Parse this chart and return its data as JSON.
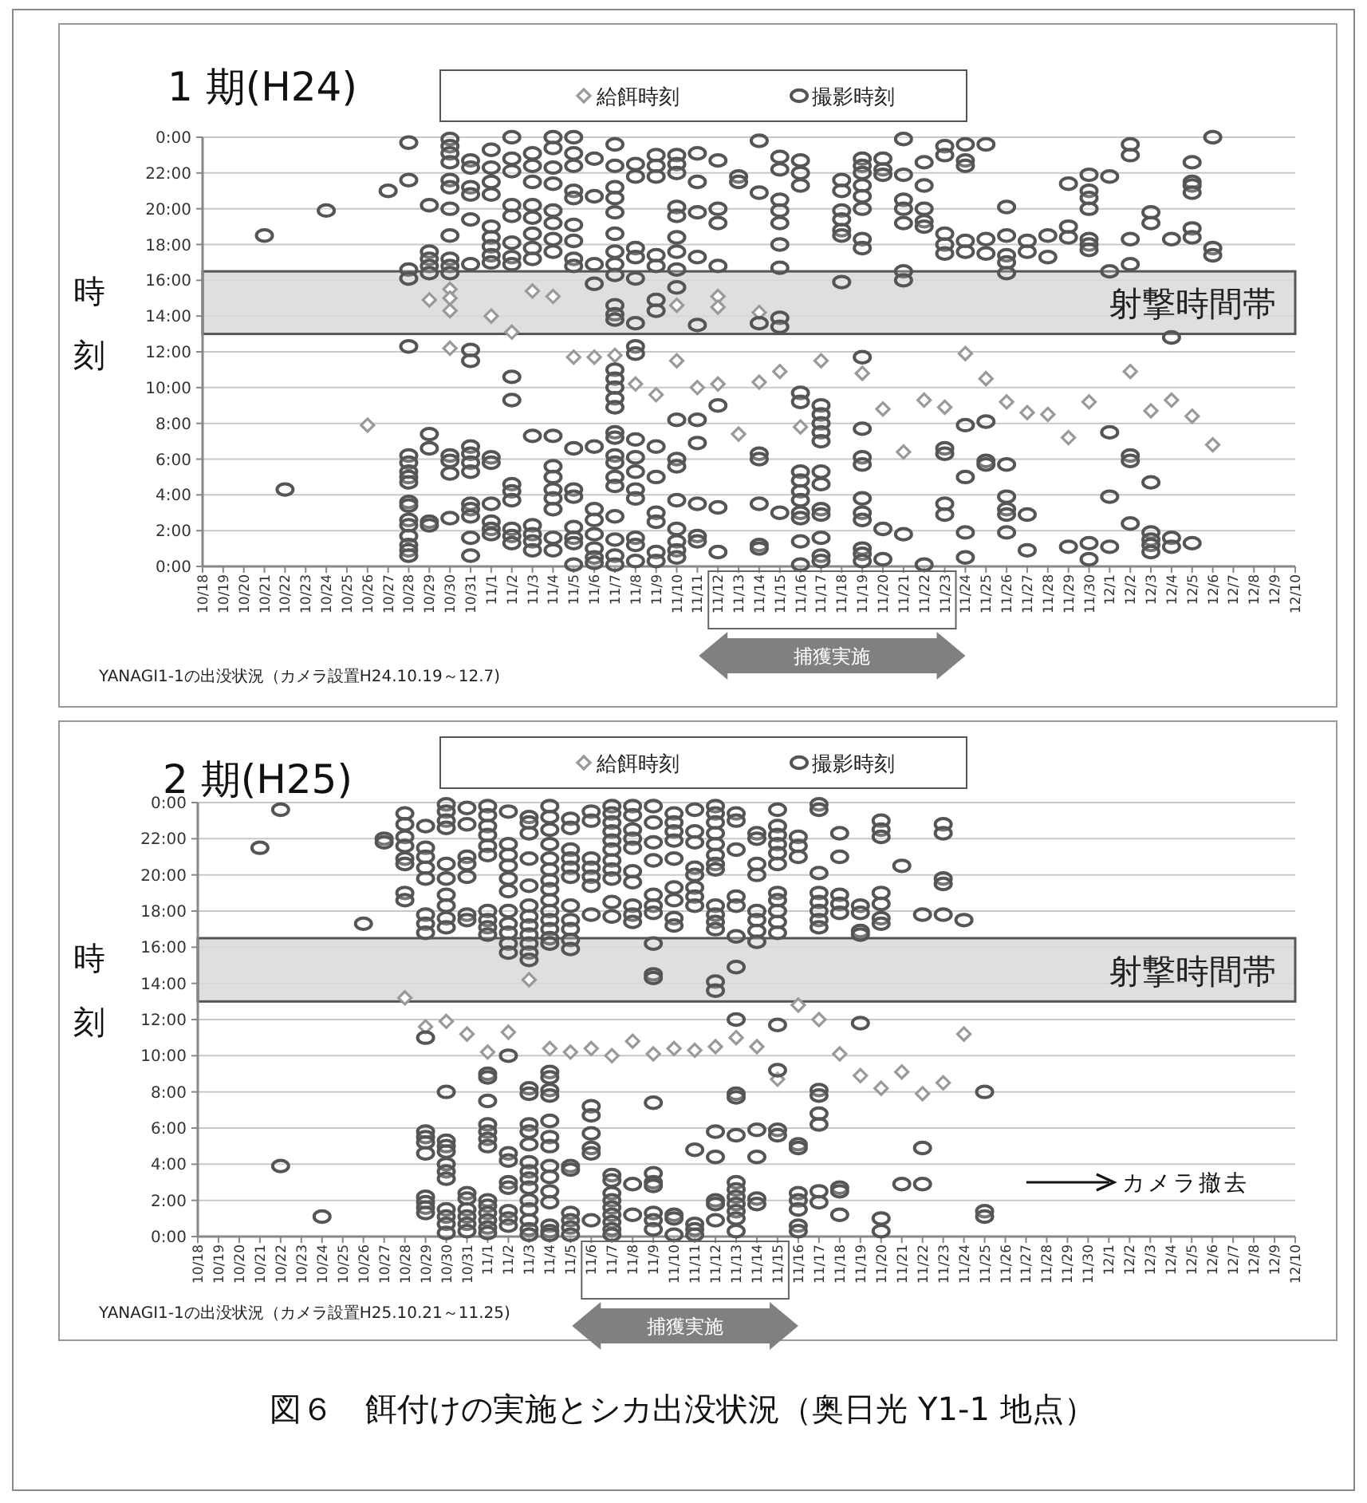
{
  "chart_data": [
    {
      "type": "scatter",
      "title": "1 期(H24)",
      "ylabel": "時刻",
      "legend": "top",
      "grid": "y",
      "categories": [
        "10/18",
        "10/19",
        "10/20",
        "10/21",
        "10/22",
        "10/23",
        "10/24",
        "10/25",
        "10/26",
        "10/27",
        "10/28",
        "10/29",
        "10/30",
        "10/31",
        "11/1",
        "11/2",
        "11/3",
        "11/4",
        "11/5",
        "11/6",
        "11/7",
        "11/8",
        "11/9",
        "11/10",
        "11/11",
        "11/12",
        "11/13",
        "11/14",
        "11/15",
        "11/16",
        "11/17",
        "11/18",
        "11/19",
        "11/20",
        "11/21",
        "11/22",
        "11/23",
        "11/24",
        "11/25",
        "11/26",
        "11/27",
        "11/28",
        "11/29",
        "11/30",
        "12/1",
        "12/2",
        "12/3",
        "12/4",
        "12/5",
        "12/6",
        "12/7",
        "12/8",
        "12/9",
        "12/10"
      ],
      "ylim": [
        0,
        24
      ],
      "yticks": [
        {
          "value": 0,
          "label": "0:00"
        },
        {
          "value": 2,
          "label": "2:00"
        },
        {
          "value": 4,
          "label": "4:00"
        },
        {
          "value": 6,
          "label": "6:00"
        },
        {
          "value": 8,
          "label": "8:00"
        },
        {
          "value": 10,
          "label": "10:00"
        },
        {
          "value": 12,
          "label": "12:00"
        },
        {
          "value": 14,
          "label": "14:00"
        },
        {
          "value": 16,
          "label": "16:00"
        },
        {
          "value": 18,
          "label": "18:00"
        },
        {
          "value": 20,
          "label": "20:00"
        },
        {
          "value": 22,
          "label": "22:00"
        },
        {
          "value": 24,
          "label": "0:00"
        }
      ],
      "bands": [
        {
          "axis": "y",
          "from": 13,
          "to": 16.5,
          "label": "射撃時間帯",
          "color": "#d9d9d9"
        }
      ],
      "annotations": [
        "YANAGI1-1の出没状況（カメラ設置H24.10.19～12.7)",
        "捕獲実施"
      ],
      "series": [
        {
          "name": "給餌時刻",
          "color": "#999999",
          "marker": "diamond",
          "x": [
            "10/26",
            "10/29",
            "10/30",
            "10/30",
            "10/30",
            "10/30",
            "11/1",
            "11/2",
            "11/3",
            "11/4",
            "11/5",
            "11/6",
            "11/7",
            "11/8",
            "11/9",
            "11/10",
            "11/10",
            "11/11",
            "11/12",
            "11/12",
            "11/12",
            "11/13",
            "11/14",
            "11/14",
            "11/15",
            "11/16",
            "11/17",
            "11/19",
            "11/20",
            "11/21",
            "11/22",
            "11/23",
            "11/24",
            "11/25",
            "11/26",
            "11/27",
            "11/28",
            "11/29",
            "11/30",
            "12/2",
            "12/3",
            "12/4",
            "12/5",
            "12/6"
          ],
          "values": [
            7.9,
            14.9,
            15.5,
            15.0,
            14.3,
            12.2,
            14.0,
            13.1,
            15.4,
            15.1,
            11.7,
            11.7,
            11.8,
            10.2,
            9.6,
            11.5,
            14.6,
            10.0,
            10.2,
            15.1,
            14.5,
            7.4,
            10.3,
            14.2,
            10.9,
            7.8,
            11.5,
            10.8,
            8.8,
            6.4,
            9.3,
            8.9,
            11.9,
            10.5,
            9.2,
            8.6,
            8.5,
            7.2,
            9.2,
            10.9,
            8.7,
            9.3,
            8.4,
            6.8
          ]
        },
        {
          "name": "撮影時刻",
          "color": "#555555",
          "marker": "circle",
          "x": [
            "10/21",
            "10/22",
            "10/24",
            "10/27",
            "10/28",
            "10/28",
            "10/28",
            "10/28",
            "10/28",
            "10/28",
            "10/28",
            "10/28",
            "10/28",
            "10/28",
            "10/28",
            "10/28",
            "10/28",
            "10/28",
            "10/28",
            "10/28",
            "10/28",
            "10/28",
            "10/29",
            "10/29",
            "10/29",
            "10/29",
            "10/29",
            "10/29",
            "10/29",
            "10/29",
            "10/29",
            "10/30",
            "10/30",
            "10/30",
            "10/30",
            "10/30",
            "10/30",
            "10/30",
            "10/30",
            "10/30",
            "10/30",
            "10/30",
            "10/30",
            "10/30",
            "10/30",
            "10/30",
            "10/31",
            "10/31",
            "10/31",
            "10/31",
            "10/31",
            "10/31",
            "10/31",
            "10/31",
            "10/31",
            "10/31",
            "10/31",
            "10/31",
            "10/31",
            "10/31",
            "10/31",
            "10/31",
            "10/31",
            "11/1",
            "11/1",
            "11/1",
            "11/1",
            "11/1",
            "11/1",
            "11/1",
            "11/1",
            "11/1",
            "11/1",
            "11/1",
            "11/1",
            "11/1",
            "11/1",
            "11/1",
            "11/2",
            "11/2",
            "11/2",
            "11/2",
            "11/2",
            "11/2",
            "11/2",
            "11/2",
            "11/2",
            "11/2",
            "11/2",
            "11/2",
            "11/2",
            "11/2",
            "11/2",
            "11/2",
            "11/3",
            "11/3",
            "11/3",
            "11/3",
            "11/3",
            "11/3",
            "11/3",
            "11/3",
            "11/3",
            "11/3",
            "11/3",
            "11/3",
            "11/3",
            "11/4",
            "11/4",
            "11/4",
            "11/4",
            "11/4",
            "11/4",
            "11/4",
            "11/4",
            "11/4",
            "11/4",
            "11/4",
            "11/4",
            "11/4",
            "11/4",
            "11/4",
            "11/4",
            "11/5",
            "11/5",
            "11/5",
            "11/5",
            "11/5",
            "11/5",
            "11/5",
            "11/5",
            "11/5",
            "11/5",
            "11/5",
            "11/5",
            "11/5",
            "11/5",
            "11/5",
            "11/5",
            "11/6",
            "11/6",
            "11/6",
            "11/6",
            "11/6",
            "11/6",
            "11/6",
            "11/6",
            "11/6",
            "11/6",
            "11/6",
            "11/7",
            "11/7",
            "11/7",
            "11/7",
            "11/7",
            "11/7",
            "11/7",
            "11/7",
            "11/7",
            "11/7",
            "11/7",
            "11/7",
            "11/7",
            "11/7",
            "11/7",
            "11/7",
            "11/7",
            "11/7",
            "11/7",
            "11/7",
            "11/7",
            "11/7",
            "11/7",
            "11/7",
            "11/7",
            "11/7",
            "11/7",
            "11/8",
            "11/8",
            "11/8",
            "11/8",
            "11/8",
            "11/8",
            "11/8",
            "11/8",
            "11/8",
            "11/8",
            "11/8",
            "11/8",
            "11/8",
            "11/8",
            "11/8",
            "11/8",
            "11/9",
            "11/9",
            "11/9",
            "11/9",
            "11/9",
            "11/9",
            "11/9",
            "11/9",
            "11/9",
            "11/9",
            "11/9",
            "11/9",
            "11/9",
            "11/10",
            "11/10",
            "11/10",
            "11/10",
            "11/10",
            "11/10",
            "11/10",
            "11/10",
            "11/10",
            "11/10",
            "11/10",
            "11/10",
            "11/10",
            "11/10",
            "11/10",
            "11/10",
            "11/10",
            "11/11",
            "11/11",
            "11/11",
            "11/11",
            "11/11",
            "11/11",
            "11/11",
            "11/11",
            "11/11",
            "11/11",
            "11/12",
            "11/12",
            "11/12",
            "11/12",
            "11/12",
            "11/12",
            "11/12",
            "11/13",
            "11/13",
            "11/14",
            "11/14",
            "11/14",
            "11/14",
            "11/14",
            "11/14",
            "11/14",
            "11/14",
            "11/15",
            "11/15",
            "11/15",
            "11/15",
            "11/15",
            "11/15",
            "11/15",
            "11/15",
            "11/15",
            "11/15",
            "11/16",
            "11/16",
            "11/16",
            "11/16",
            "11/16",
            "11/16",
            "11/16",
            "11/16",
            "11/16",
            "11/16",
            "11/16",
            "11/16",
            "11/16",
            "11/17",
            "11/17",
            "11/17",
            "11/17",
            "11/17",
            "11/17",
            "11/17",
            "11/17",
            "11/17",
            "11/17",
            "11/17",
            "11/17",
            "11/18",
            "11/18",
            "11/18",
            "11/18",
            "11/18",
            "11/18",
            "11/18",
            "11/19",
            "11/19",
            "11/19",
            "11/19",
            "11/19",
            "11/19",
            "11/19",
            "11/19",
            "11/19",
            "11/19",
            "11/19",
            "11/19",
            "11/19",
            "11/19",
            "11/19",
            "11/19",
            "11/19",
            "11/19",
            "11/20",
            "11/20",
            "11/20",
            "11/20",
            "11/20",
            "11/21",
            "11/21",
            "11/21",
            "11/21",
            "11/21",
            "11/21",
            "11/21",
            "11/21",
            "11/22",
            "11/22",
            "11/22",
            "11/22",
            "11/22",
            "11/22",
            "11/23",
            "11/23",
            "11/23",
            "11/23",
            "11/23",
            "11/23",
            "11/23",
            "11/23",
            "11/23",
            "11/24",
            "11/24",
            "11/24",
            "11/24",
            "11/24",
            "11/24",
            "11/24",
            "11/24",
            "11/24",
            "11/25",
            "11/25",
            "11/25",
            "11/25",
            "11/25",
            "11/25",
            "11/26",
            "11/26",
            "11/26",
            "11/26",
            "11/26",
            "11/26",
            "11/26",
            "11/26",
            "11/26",
            "11/26",
            "11/27",
            "11/27",
            "11/27",
            "11/27",
            "11/28",
            "11/28",
            "11/29",
            "11/29",
            "11/29",
            "11/29",
            "11/30",
            "11/30",
            "11/30",
            "11/30",
            "11/30",
            "11/30",
            "11/30",
            "11/30",
            "11/30",
            "12/1",
            "12/1",
            "12/1",
            "12/1",
            "12/1",
            "12/2",
            "12/2",
            "12/2",
            "12/2",
            "12/2",
            "12/2",
            "12/2",
            "12/3",
            "12/3",
            "12/3",
            "12/3",
            "12/3",
            "12/3",
            "12/3",
            "12/4",
            "12/4",
            "12/4",
            "12/4",
            "12/5",
            "12/5",
            "12/5",
            "12/5",
            "12/5",
            "12/5",
            "12/5",
            "12/6",
            "12/6",
            "12/6"
          ],
          "values": [
            18.5,
            4.3,
            19.9,
            21,
            23.7,
            21.6,
            16.6,
            16.1,
            12.3,
            6.2,
            5.8,
            5.3,
            5.0,
            4.7,
            3.6,
            3.4,
            2.6,
            2.3,
            1.7,
            1.2,
            0.9,
            0.6,
            20.2,
            17.6,
            17.2,
            16.8,
            16.4,
            7.4,
            6.6,
            2.5,
            2.3,
            23.9,
            23.5,
            23.1,
            22.6,
            21.6,
            21.2,
            20.0,
            18.5,
            17.2,
            16.8,
            16.4,
            6.2,
            5.9,
            5.2,
            2.7,
            22.7,
            22.3,
            21.2,
            20.8,
            19.4,
            16.9,
            12.1,
            11.5,
            6.7,
            6.3,
            5.8,
            5.3,
            3.5,
            3.2,
            2.8,
            1.6,
            0.6,
            23.3,
            22.3,
            21.5,
            20.8,
            19.0,
            18.4,
            17.9,
            17.4,
            17.0,
            6.1,
            5.8,
            3.5,
            2.5,
            2.1,
            1.8,
            24,
            22.8,
            22.1,
            20.2,
            19.6,
            18.1,
            17.3,
            16.9,
            10.6,
            9.3,
            4.6,
            4.2,
            3.7,
            2.1,
            1.7,
            1.3,
            23.1,
            22.4,
            21.5,
            20.2,
            19.5,
            18.6,
            17.8,
            17.2,
            7.3,
            2.3,
            1.8,
            1.4,
            0.9,
            24,
            23.4,
            22.3,
            21.4,
            19.9,
            19.2,
            18.3,
            17.6,
            7.3,
            5.6,
            5.0,
            4.3,
            3.8,
            3.2,
            1.6,
            0.9,
            24,
            23.1,
            22.4,
            21.0,
            20.6,
            19.1,
            18.2,
            17.2,
            16.8,
            6.6,
            4.3,
            3.9,
            2.2,
            1.6,
            1.3,
            0.1,
            22.8,
            20.7,
            16.9,
            15.8,
            6.7,
            3.2,
            2.6,
            1.8,
            1.0,
            0.5,
            0.2,
            23.6,
            22.4,
            21.2,
            20.6,
            19.8,
            18.6,
            17.6,
            16.9,
            16.3,
            14.6,
            14.1,
            13.8,
            11.0,
            10.5,
            10.0,
            9.4,
            8.9,
            7.5,
            7.2,
            6.2,
            5.8,
            5.0,
            4.5,
            2.8,
            1.5,
            0.6,
            0.1,
            22.5,
            21.8,
            17.8,
            17.3,
            16.1,
            13.6,
            12.3,
            11.9,
            7.1,
            6.1,
            5.3,
            4.3,
            3.8,
            1.6,
            1.2,
            0.3,
            23.0,
            22.4,
            21.8,
            17.4,
            16.8,
            14.9,
            14.3,
            6.7,
            5.0,
            3.0,
            2.5,
            0.8,
            0.3,
            23.0,
            22.5,
            22.0,
            20.1,
            19.6,
            18.4,
            17.6,
            16.6,
            15.6,
            8.2,
            6.0,
            5.6,
            3.7,
            2.1,
            1.4,
            0.9,
            0.5,
            23.1,
            21.5,
            19.8,
            17.3,
            13.5,
            8.2,
            6.9,
            3.5,
            1.7,
            1.4,
            22.7,
            20.0,
            19.2,
            16.8,
            9.0,
            3.3,
            0.8,
            21.8,
            21.5,
            23.8,
            20.9,
            13.6,
            6.3,
            6.0,
            3.5,
            1.2,
            1.0,
            22.9,
            22.2,
            20.5,
            19.9,
            19.2,
            18.0,
            16.7,
            13.9,
            13.4,
            3.0,
            22.7,
            22.0,
            21.3,
            9.7,
            9.2,
            5.3,
            4.8,
            4.2,
            3.7,
            3.0,
            2.7,
            1.4,
            0.1,
            9.0,
            8.5,
            8.0,
            7.5,
            7.0,
            5.3,
            4.6,
            3.2,
            2.9,
            1.6,
            0.6,
            0.3,
            21.6,
            21.0,
            19.9,
            19.4,
            18.8,
            18.5,
            15.9,
            22.8,
            22.4,
            22.0,
            21.3,
            20.7,
            20.0,
            18.3,
            17.8,
            11.7,
            7.7,
            6.1,
            5.7,
            3.8,
            3.0,
            2.6,
            1.0,
            0.7,
            0.3,
            22.8,
            22.2,
            21.9,
            2.1,
            0.4,
            23.9,
            21.9,
            20.5,
            20.0,
            19.2,
            16.5,
            16.0,
            1.8,
            22.6,
            21.3,
            20.0,
            19.3,
            19.0,
            0.1,
            23.5,
            23.0,
            18.6,
            18.0,
            17.5,
            6.6,
            6.3,
            3.5,
            2.9,
            23.6,
            22.7,
            22.4,
            18.2,
            17.6,
            7.9,
            5.0,
            1.9,
            0.5,
            23.6,
            18.3,
            17.5,
            8.1,
            5.9,
            5.7,
            20.1,
            18.5,
            17.4,
            17.0,
            16.4,
            5.7,
            3.9,
            3.2,
            2.9,
            1.9,
            18.2,
            17.6,
            2.9,
            0.9,
            18.5,
            17.3,
            21.4,
            19.0,
            18.4,
            1.1,
            21.9,
            21.0,
            20.6,
            20.0,
            18.3,
            18.0,
            17.7,
            1.3,
            0.4,
            21.8,
            16.5,
            7.5,
            3.9,
            1.1,
            23.6,
            23.0,
            18.3,
            16.9,
            6.2,
            5.9,
            2.4,
            19.8,
            19.2,
            4.7,
            1.9,
            1.5,
            1.2,
            0.8,
            18.3,
            12.8,
            1.6,
            1.1,
            22.6,
            21.5,
            21.3,
            20.9,
            18.9,
            18.4,
            1.3,
            24,
            17.8,
            17.4
          ]
        }
      ]
    },
    {
      "type": "scatter",
      "title": "2 期(H25)",
      "ylabel": "時刻",
      "legend": "top",
      "grid": "y",
      "categories": [
        "10/18",
        "10/19",
        "10/20",
        "10/21",
        "10/22",
        "10/23",
        "10/24",
        "10/25",
        "10/26",
        "10/27",
        "10/28",
        "10/29",
        "10/30",
        "10/31",
        "11/1",
        "11/2",
        "11/3",
        "11/4",
        "11/5",
        "11/6",
        "11/7",
        "11/8",
        "11/9",
        "11/10",
        "11/11",
        "11/12",
        "11/13",
        "11/14",
        "11/15",
        "11/16",
        "11/17",
        "11/18",
        "11/19",
        "11/20",
        "11/21",
        "11/22",
        "11/23",
        "11/24",
        "11/25",
        "11/26",
        "11/27",
        "11/28",
        "11/29",
        "11/30",
        "12/1",
        "12/2",
        "12/3",
        "12/4",
        "12/5",
        "12/6",
        "12/7",
        "12/8",
        "12/9",
        "12/10"
      ],
      "ylim": [
        0,
        24
      ],
      "yticks": [
        {
          "value": 0,
          "label": "0:00"
        },
        {
          "value": 2,
          "label": "2:00"
        },
        {
          "value": 4,
          "label": "4:00"
        },
        {
          "value": 6,
          "label": "6:00"
        },
        {
          "value": 8,
          "label": "8:00"
        },
        {
          "value": 10,
          "label": "10:00"
        },
        {
          "value": 12,
          "label": "12:00"
        },
        {
          "value": 14,
          "label": "14:00"
        },
        {
          "value": 16,
          "label": "16:00"
        },
        {
          "value": 18,
          "label": "18:00"
        },
        {
          "value": 20,
          "label": "20:00"
        },
        {
          "value": 22,
          "label": "22:00"
        },
        {
          "value": 24,
          "label": "0:00"
        }
      ],
      "bands": [
        {
          "axis": "y",
          "from": 13,
          "to": 16.5,
          "label": "射撃時間帯",
          "color": "#d9d9d9"
        }
      ],
      "annotations": [
        "YANAGI1-1の出没状況（カメラ設置H25.10.21～11.25)",
        "捕獲実施",
        "カメラ撤去",
        "図６　餌付けの実施とシカ出没状況（奥日光 Y1-1 地点）"
      ],
      "series": [
        {
          "name": "給餌時刻",
          "color": "#999999",
          "marker": "diamond",
          "x": [
            "10/28",
            "10/29",
            "10/30",
            "10/31",
            "11/1",
            "11/2",
            "11/3",
            "11/4",
            "11/5",
            "11/6",
            "11/7",
            "11/8",
            "11/9",
            "11/10",
            "11/11",
            "11/12",
            "11/13",
            "11/14",
            "11/15",
            "11/16",
            "11/17",
            "11/18",
            "11/19",
            "11/20",
            "11/21",
            "11/22",
            "11/23",
            "11/24"
          ],
          "values": [
            13.2,
            11.6,
            11.9,
            11.2,
            10.2,
            11.3,
            14.2,
            10.4,
            10.2,
            10.4,
            10.0,
            10.8,
            10.1,
            10.4,
            10.3,
            10.5,
            11.0,
            10.5,
            8.7,
            12.8,
            12.0,
            10.1,
            8.9,
            8.2,
            9.1,
            7.9,
            8.5,
            11.2
          ]
        },
        {
          "name": "撮影時刻",
          "color": "#555555",
          "marker": "circle",
          "x": [
            "10/21",
            "10/22",
            "10/22",
            "10/24",
            "10/26",
            "10/27",
            "10/27",
            "10/28",
            "10/28",
            "10/28",
            "10/28",
            "10/28",
            "10/28",
            "10/28",
            "10/28",
            "10/29",
            "10/29",
            "10/29",
            "10/29",
            "10/29",
            "10/29",
            "10/29",
            "10/29",
            "10/29",
            "10/29",
            "10/29",
            "10/29",
            "10/29",
            "10/29",
            "10/29",
            "10/29",
            "10/29",
            "10/30",
            "10/30",
            "10/30",
            "10/30",
            "10/30",
            "10/30",
            "10/30",
            "10/30",
            "10/30",
            "10/30",
            "10/30",
            "10/30",
            "10/30",
            "10/30",
            "10/30",
            "10/30",
            "10/30",
            "10/30",
            "10/30",
            "10/30",
            "10/30",
            "10/31",
            "10/31",
            "10/31",
            "10/31",
            "10/31",
            "10/31",
            "10/31",
            "10/31",
            "10/31",
            "10/31",
            "10/31",
            "10/31",
            "10/31",
            "11/1",
            "11/1",
            "11/1",
            "11/1",
            "11/1",
            "11/1",
            "11/1",
            "11/1",
            "11/1",
            "11/1",
            "11/1",
            "11/1",
            "11/1",
            "11/1",
            "11/1",
            "11/1",
            "11/1",
            "11/1",
            "11/1",
            "11/1",
            "11/1",
            "11/1",
            "11/1",
            "11/2",
            "11/2",
            "11/2",
            "11/2",
            "11/2",
            "11/2",
            "11/2",
            "11/2",
            "11/2",
            "11/2",
            "11/2",
            "11/2",
            "11/2",
            "11/2",
            "11/2",
            "11/2",
            "11/2",
            "11/2",
            "11/2",
            "11/3",
            "11/3",
            "11/3",
            "11/3",
            "11/3",
            "11/3",
            "11/3",
            "11/3",
            "11/3",
            "11/3",
            "11/3",
            "11/3",
            "11/3",
            "11/3",
            "11/3",
            "11/3",
            "11/3",
            "11/3",
            "11/3",
            "11/3",
            "11/3",
            "11/3",
            "11/3",
            "11/3",
            "11/3",
            "11/3",
            "11/4",
            "11/4",
            "11/4",
            "11/4",
            "11/4",
            "11/4",
            "11/4",
            "11/4",
            "11/4",
            "11/4",
            "11/4",
            "11/4",
            "11/4",
            "11/4",
            "11/4",
            "11/4",
            "11/4",
            "11/4",
            "11/4",
            "11/4",
            "11/4",
            "11/4",
            "11/4",
            "11/4",
            "11/4",
            "11/4",
            "11/4",
            "11/4",
            "11/5",
            "11/5",
            "11/5",
            "11/5",
            "11/5",
            "11/5",
            "11/5",
            "11/5",
            "11/5",
            "11/5",
            "11/5",
            "11/5",
            "11/5",
            "11/5",
            "11/5",
            "11/5",
            "11/5",
            "11/6",
            "11/6",
            "11/6",
            "11/6",
            "11/6",
            "11/6",
            "11/6",
            "11/6",
            "11/6",
            "11/6",
            "11/6",
            "11/6",
            "11/6",
            "11/7",
            "11/7",
            "11/7",
            "11/7",
            "11/7",
            "11/7",
            "11/7",
            "11/7",
            "11/7",
            "11/7",
            "11/7",
            "11/7",
            "11/7",
            "11/7",
            "11/7",
            "11/7",
            "11/7",
            "11/7",
            "11/7",
            "11/7",
            "11/8",
            "11/8",
            "11/8",
            "11/8",
            "11/8",
            "11/8",
            "11/8",
            "11/8",
            "11/8",
            "11/8",
            "11/8",
            "11/8",
            "11/9",
            "11/9",
            "11/9",
            "11/9",
            "11/9",
            "11/9",
            "11/9",
            "11/9",
            "11/9",
            "11/9",
            "11/9",
            "11/9",
            "11/9",
            "11/9",
            "11/9",
            "11/9",
            "11/9",
            "11/10",
            "11/10",
            "11/10",
            "11/10",
            "11/10",
            "11/10",
            "11/10",
            "11/10",
            "11/10",
            "11/10",
            "11/10",
            "11/10",
            "11/11",
            "11/11",
            "11/11",
            "11/11",
            "11/11",
            "11/11",
            "11/11",
            "11/11",
            "11/11",
            "11/11",
            "11/11",
            "11/11",
            "11/12",
            "11/12",
            "11/12",
            "11/12",
            "11/12",
            "11/12",
            "11/12",
            "11/12",
            "11/12",
            "11/12",
            "11/12",
            "11/12",
            "11/12",
            "11/12",
            "11/12",
            "11/12",
            "11/12",
            "11/12",
            "11/12",
            "11/13",
            "11/13",
            "11/13",
            "11/13",
            "11/13",
            "11/13",
            "11/13",
            "11/13",
            "11/13",
            "11/13",
            "11/13",
            "11/13",
            "11/13",
            "11/13",
            "11/13",
            "11/13",
            "11/13",
            "11/13",
            "11/14",
            "11/14",
            "11/14",
            "11/14",
            "11/14",
            "11/14",
            "11/14",
            "11/14",
            "11/14",
            "11/14",
            "11/14",
            "11/14",
            "11/15",
            "11/15",
            "11/15",
            "11/15",
            "11/15",
            "11/15",
            "11/15",
            "11/15",
            "11/15",
            "11/15",
            "11/15",
            "11/15",
            "11/15",
            "11/15",
            "11/15",
            "11/16",
            "11/16",
            "11/16",
            "11/16",
            "11/16",
            "11/16",
            "11/16",
            "11/16",
            "11/16",
            "11/16",
            "11/17",
            "11/17",
            "11/17",
            "11/17",
            "11/17",
            "11/17",
            "11/17",
            "11/17",
            "11/17",
            "11/17",
            "11/17",
            "11/17",
            "11/17",
            "11/17",
            "11/18",
            "11/18",
            "11/18",
            "11/18",
            "11/18",
            "11/18",
            "11/18",
            "11/18",
            "11/19",
            "11/19",
            "11/19",
            "11/19",
            "11/19",
            "11/20",
            "11/20",
            "11/20",
            "11/20",
            "11/20",
            "11/20",
            "11/20",
            "11/20",
            "11/20",
            "11/21",
            "11/21",
            "11/22",
            "11/22",
            "11/22",
            "11/23",
            "11/23",
            "11/23",
            "11/23",
            "11/23",
            "11/24",
            "11/25",
            "11/25",
            "11/25"
          ],
          "values": [
            21.5,
            23.6,
            3.9,
            1.1,
            17.3,
            22.0,
            21.8,
            23.4,
            22.8,
            22.1,
            21.6,
            20.9,
            20.6,
            19.0,
            18.6,
            22.7,
            21.5,
            21.0,
            20.4,
            19.8,
            17.8,
            17.3,
            16.8,
            11.0,
            5.8,
            5.5,
            5.2,
            4.6,
            2.2,
            1.9,
            1.6,
            1.3,
            23.9,
            23.5,
            23.0,
            22.6,
            20.6,
            19.8,
            18.9,
            18.3,
            17.6,
            17.1,
            8.0,
            5.3,
            5.0,
            4.7,
            4.0,
            3.6,
            3.2,
            1.5,
            1.1,
            0.7,
            0.2,
            23.7,
            22.8,
            21.0,
            20.6,
            19.9,
            17.8,
            17.5,
            2.4,
            2.1,
            1.5,
            1.1,
            0.7,
            0.3,
            23.8,
            23.3,
            22.7,
            22.2,
            21.6,
            21.1,
            18.0,
            17.5,
            17.1,
            16.7,
            9.0,
            8.8,
            7.5,
            6.2,
            5.8,
            5.4,
            5.0,
            2.0,
            1.7,
            1.3,
            0.9,
            0.5,
            0.2,
            23.5,
            21.7,
            21.1,
            20.5,
            19.8,
            19.1,
            18.0,
            17.3,
            16.8,
            16.2,
            15.7,
            10.0,
            4.6,
            4.2,
            3.0,
            2.7,
            1.4,
            1.0,
            0.6,
            23.2,
            22.9,
            22.3,
            20.9,
            19.4,
            18.3,
            17.7,
            17.2,
            16.7,
            16.2,
            15.7,
            15.3,
            8.2,
            7.9,
            6.2,
            5.8,
            5.1,
            4.1,
            3.6,
            3.2,
            2.7,
            2.0,
            1.5,
            0.9,
            0.4,
            0.1,
            23.8,
            23.2,
            22.5,
            21.7,
            20.9,
            20.3,
            19.7,
            19.2,
            18.6,
            18.0,
            17.5,
            17.0,
            16.5,
            16.2,
            9.1,
            8.8,
            8.1,
            7.8,
            6.4,
            5.5,
            5.0,
            3.9,
            3.3,
            2.5,
            1.9,
            0.6,
            0.3,
            0.1,
            23.1,
            22.6,
            21.4,
            20.9,
            20.4,
            19.9,
            18.3,
            17.5,
            17.0,
            16.4,
            15.9,
            3.9,
            3.7,
            1.3,
            0.9,
            0.5,
            0.1,
            23.5,
            23.0,
            20.9,
            20.4,
            19.9,
            19.4,
            17.8,
            7.2,
            6.7,
            5.7,
            4.9,
            4.6,
            0.9,
            23.8,
            23.4,
            22.9,
            22.4,
            21.9,
            21.4,
            20.8,
            20.3,
            19.8,
            18.5,
            17.7,
            3.4,
            3.1,
            2.4,
            2.0,
            1.6,
            1.2,
            0.8,
            0.4,
            0.1,
            23.8,
            23.3,
            22.5,
            22.0,
            21.5,
            20.2,
            19.6,
            18.3,
            17.8,
            17.4,
            2.9,
            1.2,
            23.8,
            22.9,
            21.8,
            20.8,
            18.9,
            18.3,
            17.9,
            16.2,
            14.5,
            14.3,
            7.4,
            3.5,
            3.0,
            2.8,
            1.3,
            0.9,
            0.4,
            23.4,
            22.9,
            22.4,
            21.9,
            20.9,
            19.3,
            18.6,
            17.6,
            17.2,
            1.2,
            1.0,
            0.1,
            23.6,
            22.4,
            21.8,
            20.4,
            20.0,
            19.3,
            18.8,
            18.3,
            4.8,
            0.7,
            0.4,
            0.1,
            23.8,
            23.4,
            22.9,
            22.3,
            21.7,
            21.1,
            20.6,
            20.3,
            18.3,
            17.8,
            17.4,
            17.0,
            14.1,
            13.6,
            5.8,
            4.4,
            2.0,
            1.8,
            0.9,
            23.4,
            23.0,
            21.4,
            18.8,
            18.3,
            16.6,
            14.9,
            12.0,
            7.9,
            7.7,
            5.6,
            3.0,
            2.6,
            2.2,
            1.8,
            1.4,
            1.0,
            0.3,
            22.3,
            22.0,
            20.6,
            20.0,
            18.0,
            17.5,
            16.9,
            16.3,
            5.9,
            4.4,
            2.1,
            1.8,
            23.6,
            22.7,
            22.2,
            21.7,
            21.2,
            20.6,
            19.0,
            18.6,
            18.0,
            17.4,
            16.8,
            11.7,
            9.2,
            5.9,
            5.6,
            22.1,
            21.6,
            21.0,
            5.1,
            4.9,
            2.4,
            2.0,
            1.5,
            0.6,
            0.3,
            23.9,
            23.6,
            20.1,
            19.0,
            18.5,
            18.0,
            17.5,
            17.1,
            8.1,
            7.8,
            6.8,
            6.2,
            2.5,
            1.9,
            22.3,
            21.0,
            18.9,
            18.4,
            17.9,
            2.7,
            2.5,
            1.2,
            18.3,
            17.9,
            16.9,
            16.7,
            11.8,
            23.0,
            22.5,
            22.1,
            19.0,
            18.4,
            17.6,
            17.3,
            1.0,
            0.3,
            20.5,
            2.9,
            17.8,
            4.9,
            2.9,
            22.8,
            22.3,
            19.8,
            19.5,
            17.8,
            17.5,
            8.0,
            1.4,
            1.1
          ]
        }
      ]
    }
  ]
}
